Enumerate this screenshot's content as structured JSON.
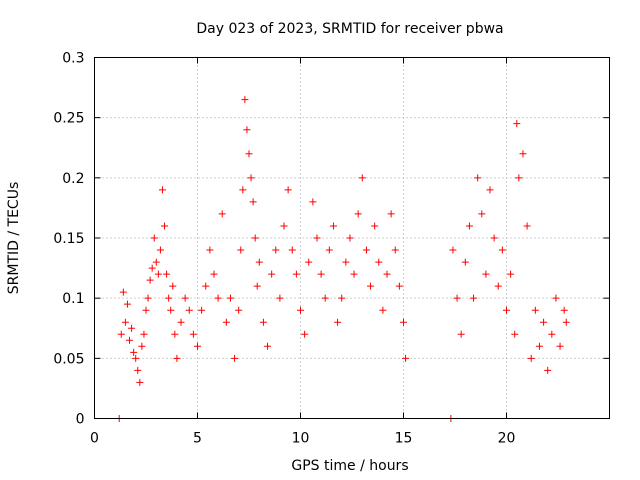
{
  "chart_data": {
    "type": "scatter",
    "title": "Day 023 of 2023, SRMTID for receiver pbwa",
    "xlabel": "GPS time / hours",
    "ylabel": "SRMTID / TECUs",
    "xlim": [
      0,
      25
    ],
    "ylim": [
      0,
      0.3
    ],
    "x_ticks": [
      0,
      5,
      10,
      15,
      20
    ],
    "x_tick_labels": [
      "0",
      "5",
      "10",
      "15",
      "20"
    ],
    "y_ticks": [
      0,
      0.05,
      0.1,
      0.15,
      0.2,
      0.25,
      0.3
    ],
    "y_tick_labels": [
      "0",
      "0.05",
      "0.1",
      "0.15",
      "0.2",
      "0.25",
      "0.3"
    ],
    "grid": true,
    "marker": "plus",
    "color": "#ff0000",
    "series": [
      {
        "name": "SRMTID",
        "points": [
          [
            1.2,
            0.0
          ],
          [
            17.3,
            0.0
          ],
          [
            1.3,
            0.07
          ],
          [
            1.4,
            0.105
          ],
          [
            1.5,
            0.08
          ],
          [
            1.6,
            0.095
          ],
          [
            1.7,
            0.065
          ],
          [
            1.8,
            0.075
          ],
          [
            1.9,
            0.055
          ],
          [
            2.0,
            0.05
          ],
          [
            2.1,
            0.04
          ],
          [
            2.2,
            0.03
          ],
          [
            2.3,
            0.06
          ],
          [
            2.4,
            0.07
          ],
          [
            2.5,
            0.09
          ],
          [
            2.6,
            0.1
          ],
          [
            2.7,
            0.115
          ],
          [
            2.8,
            0.125
          ],
          [
            2.9,
            0.15
          ],
          [
            3.0,
            0.13
          ],
          [
            3.1,
            0.12
          ],
          [
            3.2,
            0.14
          ],
          [
            3.3,
            0.19
          ],
          [
            3.4,
            0.16
          ],
          [
            3.5,
            0.12
          ],
          [
            3.6,
            0.1
          ],
          [
            3.7,
            0.09
          ],
          [
            3.8,
            0.11
          ],
          [
            3.9,
            0.07
          ],
          [
            4.0,
            0.05
          ],
          [
            4.2,
            0.08
          ],
          [
            4.4,
            0.1
          ],
          [
            4.6,
            0.09
          ],
          [
            4.8,
            0.07
          ],
          [
            5.0,
            0.06
          ],
          [
            5.2,
            0.09
          ],
          [
            5.4,
            0.11
          ],
          [
            5.6,
            0.14
          ],
          [
            5.8,
            0.12
          ],
          [
            6.0,
            0.1
          ],
          [
            6.2,
            0.17
          ],
          [
            6.4,
            0.08
          ],
          [
            6.6,
            0.1
          ],
          [
            6.8,
            0.05
          ],
          [
            7.0,
            0.09
          ],
          [
            7.1,
            0.14
          ],
          [
            7.2,
            0.19
          ],
          [
            7.3,
            0.265
          ],
          [
            7.4,
            0.24
          ],
          [
            7.5,
            0.22
          ],
          [
            7.6,
            0.2
          ],
          [
            7.7,
            0.18
          ],
          [
            7.8,
            0.15
          ],
          [
            7.9,
            0.11
          ],
          [
            8.0,
            0.13
          ],
          [
            8.2,
            0.08
          ],
          [
            8.4,
            0.06
          ],
          [
            8.6,
            0.12
          ],
          [
            8.8,
            0.14
          ],
          [
            9.0,
            0.1
          ],
          [
            9.2,
            0.16
          ],
          [
            9.4,
            0.19
          ],
          [
            9.6,
            0.14
          ],
          [
            9.8,
            0.12
          ],
          [
            10.0,
            0.09
          ],
          [
            10.2,
            0.07
          ],
          [
            10.4,
            0.13
          ],
          [
            10.6,
            0.18
          ],
          [
            10.8,
            0.15
          ],
          [
            11.0,
            0.12
          ],
          [
            11.2,
            0.1
          ],
          [
            11.4,
            0.14
          ],
          [
            11.6,
            0.16
          ],
          [
            11.8,
            0.08
          ],
          [
            12.0,
            0.1
          ],
          [
            12.2,
            0.13
          ],
          [
            12.4,
            0.15
          ],
          [
            12.6,
            0.12
          ],
          [
            12.8,
            0.17
          ],
          [
            13.0,
            0.2
          ],
          [
            13.2,
            0.14
          ],
          [
            13.4,
            0.11
          ],
          [
            13.6,
            0.16
          ],
          [
            13.8,
            0.13
          ],
          [
            14.0,
            0.09
          ],
          [
            14.2,
            0.12
          ],
          [
            14.4,
            0.17
          ],
          [
            14.6,
            0.14
          ],
          [
            14.8,
            0.11
          ],
          [
            15.0,
            0.08
          ],
          [
            15.1,
            0.05
          ],
          [
            17.4,
            0.14
          ],
          [
            17.6,
            0.1
          ],
          [
            17.8,
            0.07
          ],
          [
            18.0,
            0.13
          ],
          [
            18.2,
            0.16
          ],
          [
            18.4,
            0.1
          ],
          [
            18.6,
            0.2
          ],
          [
            18.8,
            0.17
          ],
          [
            19.0,
            0.12
          ],
          [
            19.2,
            0.19
          ],
          [
            19.4,
            0.15
          ],
          [
            19.6,
            0.11
          ],
          [
            19.8,
            0.14
          ],
          [
            20.0,
            0.09
          ],
          [
            20.2,
            0.12
          ],
          [
            20.4,
            0.07
          ],
          [
            20.5,
            0.245
          ],
          [
            20.6,
            0.2
          ],
          [
            20.8,
            0.22
          ],
          [
            21.0,
            0.16
          ],
          [
            21.2,
            0.05
          ],
          [
            21.4,
            0.09
          ],
          [
            21.6,
            0.06
          ],
          [
            21.8,
            0.08
          ],
          [
            22.0,
            0.04
          ],
          [
            22.2,
            0.07
          ],
          [
            22.4,
            0.1
          ],
          [
            22.6,
            0.06
          ],
          [
            22.8,
            0.09
          ],
          [
            22.9,
            0.08
          ]
        ]
      }
    ]
  }
}
